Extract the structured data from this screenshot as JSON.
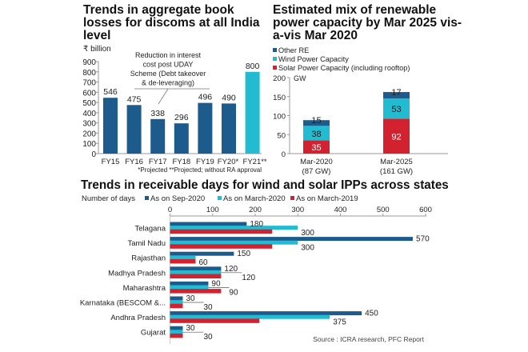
{
  "colors": {
    "dark_blue": "#1d5b8c",
    "cyan": "#22bcd2",
    "red": "#d3222f",
    "axis": "#999999"
  },
  "chart_data": [
    {
      "type": "bar",
      "title": "Trends in aggregate book losses for discoms at all India level",
      "ylabel": "₹ billion",
      "ylim": [
        0,
        900
      ],
      "yticks": [
        "0",
        "100",
        "200",
        "300",
        "400",
        "500",
        "600",
        "700",
        "800",
        "900"
      ],
      "categories": [
        "FY15",
        "FY16",
        "FY17",
        "FY18",
        "FY19",
        "FY20*",
        "FY21**"
      ],
      "values": [
        546,
        475,
        338,
        296,
        496,
        490,
        800
      ],
      "value_labels": [
        "546",
        "475",
        "338",
        "296",
        "496",
        "490",
        "800"
      ],
      "highlight_index": 6,
      "annotation": [
        "Reduction in interest",
        "cost post UDAY",
        "Scheme (Debt takeover",
        "& de-leveraging)"
      ],
      "footnote": "*Projected  **Projected; without RA approval"
    },
    {
      "type": "bar",
      "stacked": true,
      "title": "Estimated mix of renewable power capacity by Mar 2025 vis-a-vis Mar 2020",
      "ylabel": "GW",
      "ylim": [
        0,
        200
      ],
      "yticks": [
        "0",
        "50",
        "100",
        "150",
        "200"
      ],
      "categories": [
        "Mar-2020",
        "Mar-2025"
      ],
      "category_sublabels": [
        "(87 GW)",
        "(161 GW)"
      ],
      "series": [
        {
          "name": "Solar Power Capacity (including rooftop)",
          "values": [
            35,
            92
          ],
          "labels": [
            "35",
            "92"
          ]
        },
        {
          "name": "Wind Power Capacity",
          "values": [
            38,
            53
          ],
          "labels": [
            "38",
            "53"
          ]
        },
        {
          "name": "Other RE",
          "values": [
            15,
            17
          ],
          "labels": [
            "15",
            "17"
          ]
        }
      ],
      "legend_order": [
        "Other RE",
        "Wind Power Capacity",
        "Solar Power Capacity (including rooftop)"
      ],
      "legend": "top-left"
    },
    {
      "type": "bar",
      "orientation": "horizontal",
      "title": "Trends in receivable days for wind and solar IPPs across states",
      "xlabel": "Number of days",
      "xlim": [
        0,
        600
      ],
      "xticks": [
        "0",
        "100",
        "200",
        "300",
        "400",
        "500",
        "600"
      ],
      "categories": [
        "Telagana",
        "Tamil Nadu",
        "Rajasthan",
        "Madhya Pradesh",
        "Maharashtra",
        "Karnataka (BESCOM &...",
        "Andhra Pradesh",
        "Gujarat"
      ],
      "series": [
        {
          "name": "As on Sep-2020",
          "values": [
            180,
            570,
            150,
            120,
            90,
            30,
            450,
            30
          ]
        },
        {
          "name": "As on March-2020",
          "values": [
            300,
            300,
            60,
            120,
            90,
            30,
            375,
            30
          ]
        },
        {
          "name": "As on March-2019",
          "values": [
            240,
            240,
            60,
            120,
            120,
            30,
            210,
            30
          ]
        }
      ],
      "value_labels": [
        [
          "180",
          "300"
        ],
        [
          "570",
          "300"
        ],
        [
          "150",
          "60"
        ],
        [
          "120",
          "120"
        ],
        [
          "90",
          "90"
        ],
        [
          "30",
          "30"
        ],
        [
          "450",
          "375"
        ],
        [
          "30",
          "30"
        ]
      ],
      "source": "Source : ICRA research,  PFC Report"
    }
  ]
}
